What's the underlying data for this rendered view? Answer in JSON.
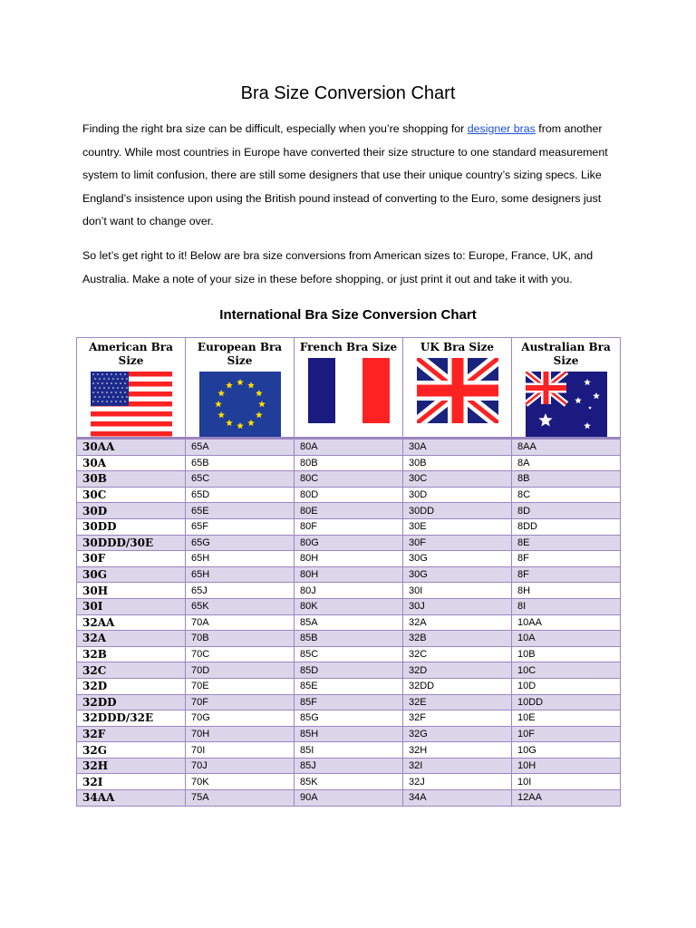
{
  "title": "Bra Size Conversion Chart",
  "intro": {
    "before_link": "Finding the right bra size can be difficult, especially when you’re shopping for ",
    "link": "designer bras",
    "after_link": " from another country.  While most countries in Europe have converted their size structure to one standard measurement system to limit confusion, there are still some designers that use their unique country’s sizing specs.  Like England’s insistence upon using the British pound instead of converting to the Euro, some designers just don’t want to change over."
  },
  "intro2": "So let’s get right to it!  Below are bra size conversions from American sizes to: Europe, France, UK, and Australia.  Make a note of your size in these before shopping, or just print it out and take it with you.",
  "table_title": "International Bra Size Conversion Chart",
  "columns": [
    {
      "label": "American Bra Size",
      "flag": "us-flag-icon"
    },
    {
      "label": "European Bra Size",
      "flag": "eu-flag-icon"
    },
    {
      "label": "French Bra Size",
      "flag": "france-flag-icon"
    },
    {
      "label": "UK Bra Size",
      "flag": "uk-flag-icon"
    },
    {
      "label": "Australian Bra Size",
      "flag": "australia-flag-icon"
    }
  ],
  "colors": {
    "border": "#9a86c0",
    "row_alt": "#dcd6ea",
    "link": "#1a4fd6"
  },
  "rows": [
    [
      "30AA",
      "65A",
      "80A",
      "30A",
      "8AA"
    ],
    [
      "30A",
      "65B",
      "80B",
      "30B",
      "8A"
    ],
    [
      "30B",
      "65C",
      "80C",
      "30C",
      "8B"
    ],
    [
      "30C",
      "65D",
      "80D",
      "30D",
      "8C"
    ],
    [
      "30D",
      "65E",
      "80E",
      "30DD",
      "8D"
    ],
    [
      "30DD",
      "65F",
      "80F",
      "30E",
      "8DD"
    ],
    [
      "30DDD/30E",
      "65G",
      "80G",
      "30F",
      "8E"
    ],
    [
      "30F",
      "65H",
      "80H",
      "30G",
      "8F"
    ],
    [
      "30G",
      "65H",
      "80H",
      "30G",
      "8F"
    ],
    [
      "30H",
      "65J",
      "80J",
      "30I",
      "8H"
    ],
    [
      "30I",
      "65K",
      "80K",
      "30J",
      "8I"
    ],
    [
      "32AA",
      "70A",
      "85A",
      "32A",
      "10AA"
    ],
    [
      "32A",
      "70B",
      "85B",
      "32B",
      "10A"
    ],
    [
      "32B",
      "70C",
      "85C",
      "32C",
      "10B"
    ],
    [
      "32C",
      "70D",
      "85D",
      "32D",
      "10C"
    ],
    [
      "32D",
      "70E",
      "85E",
      "32DD",
      "10D"
    ],
    [
      "32DD",
      "70F",
      "85F",
      "32E",
      "10DD"
    ],
    [
      "32DDD/32E",
      "70G",
      "85G",
      "32F",
      "10E"
    ],
    [
      "32F",
      "70H",
      "85H",
      "32G",
      "10F"
    ],
    [
      "32G",
      "70I",
      "85I",
      "32H",
      "10G"
    ],
    [
      "32H",
      "70J",
      "85J",
      "32I",
      "10H"
    ],
    [
      "32I",
      "70K",
      "85K",
      "32J",
      "10I"
    ],
    [
      "34AA",
      "75A",
      "90A",
      "34A",
      "12AA"
    ]
  ]
}
